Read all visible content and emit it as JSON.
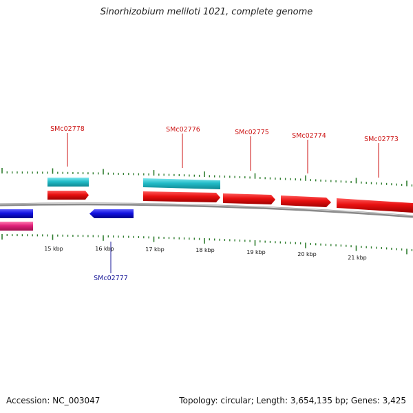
{
  "title": "Sinorhizobium meliloti 1021, complete genome",
  "footer": {
    "accession": "Accession: NC_003047",
    "summary": "Topology: circular; Length: 3,654,135 bp; Genes: 3,425"
  },
  "colors": {
    "backbone": "#8a8a8a",
    "tick": "#2e7d2e",
    "cds_forward": "#e01010",
    "cds_reverse": "#1010d8",
    "gene_cyan": "#22bcc8",
    "gene_magenta": "#e0207a",
    "label_forward": "#cc1111",
    "label_reverse": "#1a1a99"
  },
  "scale_labels": [
    "15 kbp",
    "16 kbp",
    "17 kbp",
    "18 kbp",
    "19 kbp",
    "20 kbp",
    "21 kbp"
  ],
  "gene_labels": [
    {
      "text": "SMc02778",
      "strand": "forward"
    },
    {
      "text": "SMc02776",
      "strand": "forward"
    },
    {
      "text": "SMc02775",
      "strand": "forward"
    },
    {
      "text": "SMc02774",
      "strand": "forward"
    },
    {
      "text": "SMc02773",
      "strand": "forward"
    },
    {
      "text": "SMc02777",
      "strand": "reverse"
    }
  ]
}
